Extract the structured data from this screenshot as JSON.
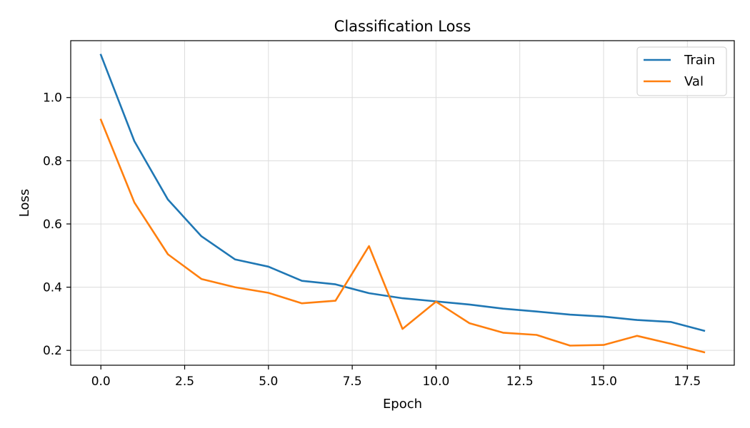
{
  "chart_data": {
    "type": "line",
    "title": "Classification Loss",
    "xlabel": "Epoch",
    "ylabel": "Loss",
    "xlim": [
      -0.9,
      18.9
    ],
    "ylim": [
      0.153,
      1.18
    ],
    "xticks": [
      0.0,
      2.5,
      5.0,
      7.5,
      10.0,
      12.5,
      15.0,
      17.5
    ],
    "xtick_labels": [
      "0.0",
      "2.5",
      "5.0",
      "7.5",
      "10.0",
      "12.5",
      "15.0",
      "17.5"
    ],
    "yticks": [
      0.2,
      0.4,
      0.6,
      0.8,
      1.0
    ],
    "ytick_labels": [
      "0.2",
      "0.4",
      "0.6",
      "0.8",
      "1.0"
    ],
    "grid": true,
    "legend_position": "top-right",
    "x": [
      0,
      1,
      2,
      3,
      4,
      5,
      6,
      7,
      8,
      9,
      10,
      11,
      12,
      13,
      14,
      15,
      16,
      17,
      18
    ],
    "series": [
      {
        "name": "Train",
        "color": "#1f77b4",
        "values": [
          1.135,
          0.862,
          0.677,
          0.561,
          0.488,
          0.465,
          0.42,
          0.409,
          0.381,
          0.365,
          0.355,
          0.345,
          0.332,
          0.323,
          0.313,
          0.307,
          0.296,
          0.29,
          0.262
        ]
      },
      {
        "name": "Val",
        "color": "#ff7f0e",
        "values": [
          0.93,
          0.668,
          0.504,
          0.426,
          0.4,
          0.382,
          0.349,
          0.357,
          0.53,
          0.268,
          0.354,
          0.286,
          0.256,
          0.249,
          0.215,
          0.217,
          0.246,
          0.221,
          0.194
        ]
      }
    ]
  }
}
